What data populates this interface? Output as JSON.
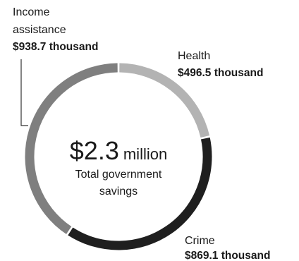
{
  "chart_data": {
    "type": "pie",
    "variant": "donut",
    "center": {
      "value": "$2.3",
      "unit": "million",
      "caption_lines": [
        "Total government",
        "savings"
      ]
    },
    "slices": [
      {
        "name": "Health",
        "value": 496.5,
        "value_label": "$496.5 thousand",
        "color": "#b3b3b3"
      },
      {
        "name": "Crime",
        "value": 869.1,
        "value_label": "$869.1 thousand",
        "color": "#1f1f1f"
      },
      {
        "name": "Income assistance",
        "name_lines": [
          "Income",
          "assistance"
        ],
        "value": 938.7,
        "value_label": "$938.7 thousand",
        "color": "#7f7f7f"
      }
    ]
  }
}
